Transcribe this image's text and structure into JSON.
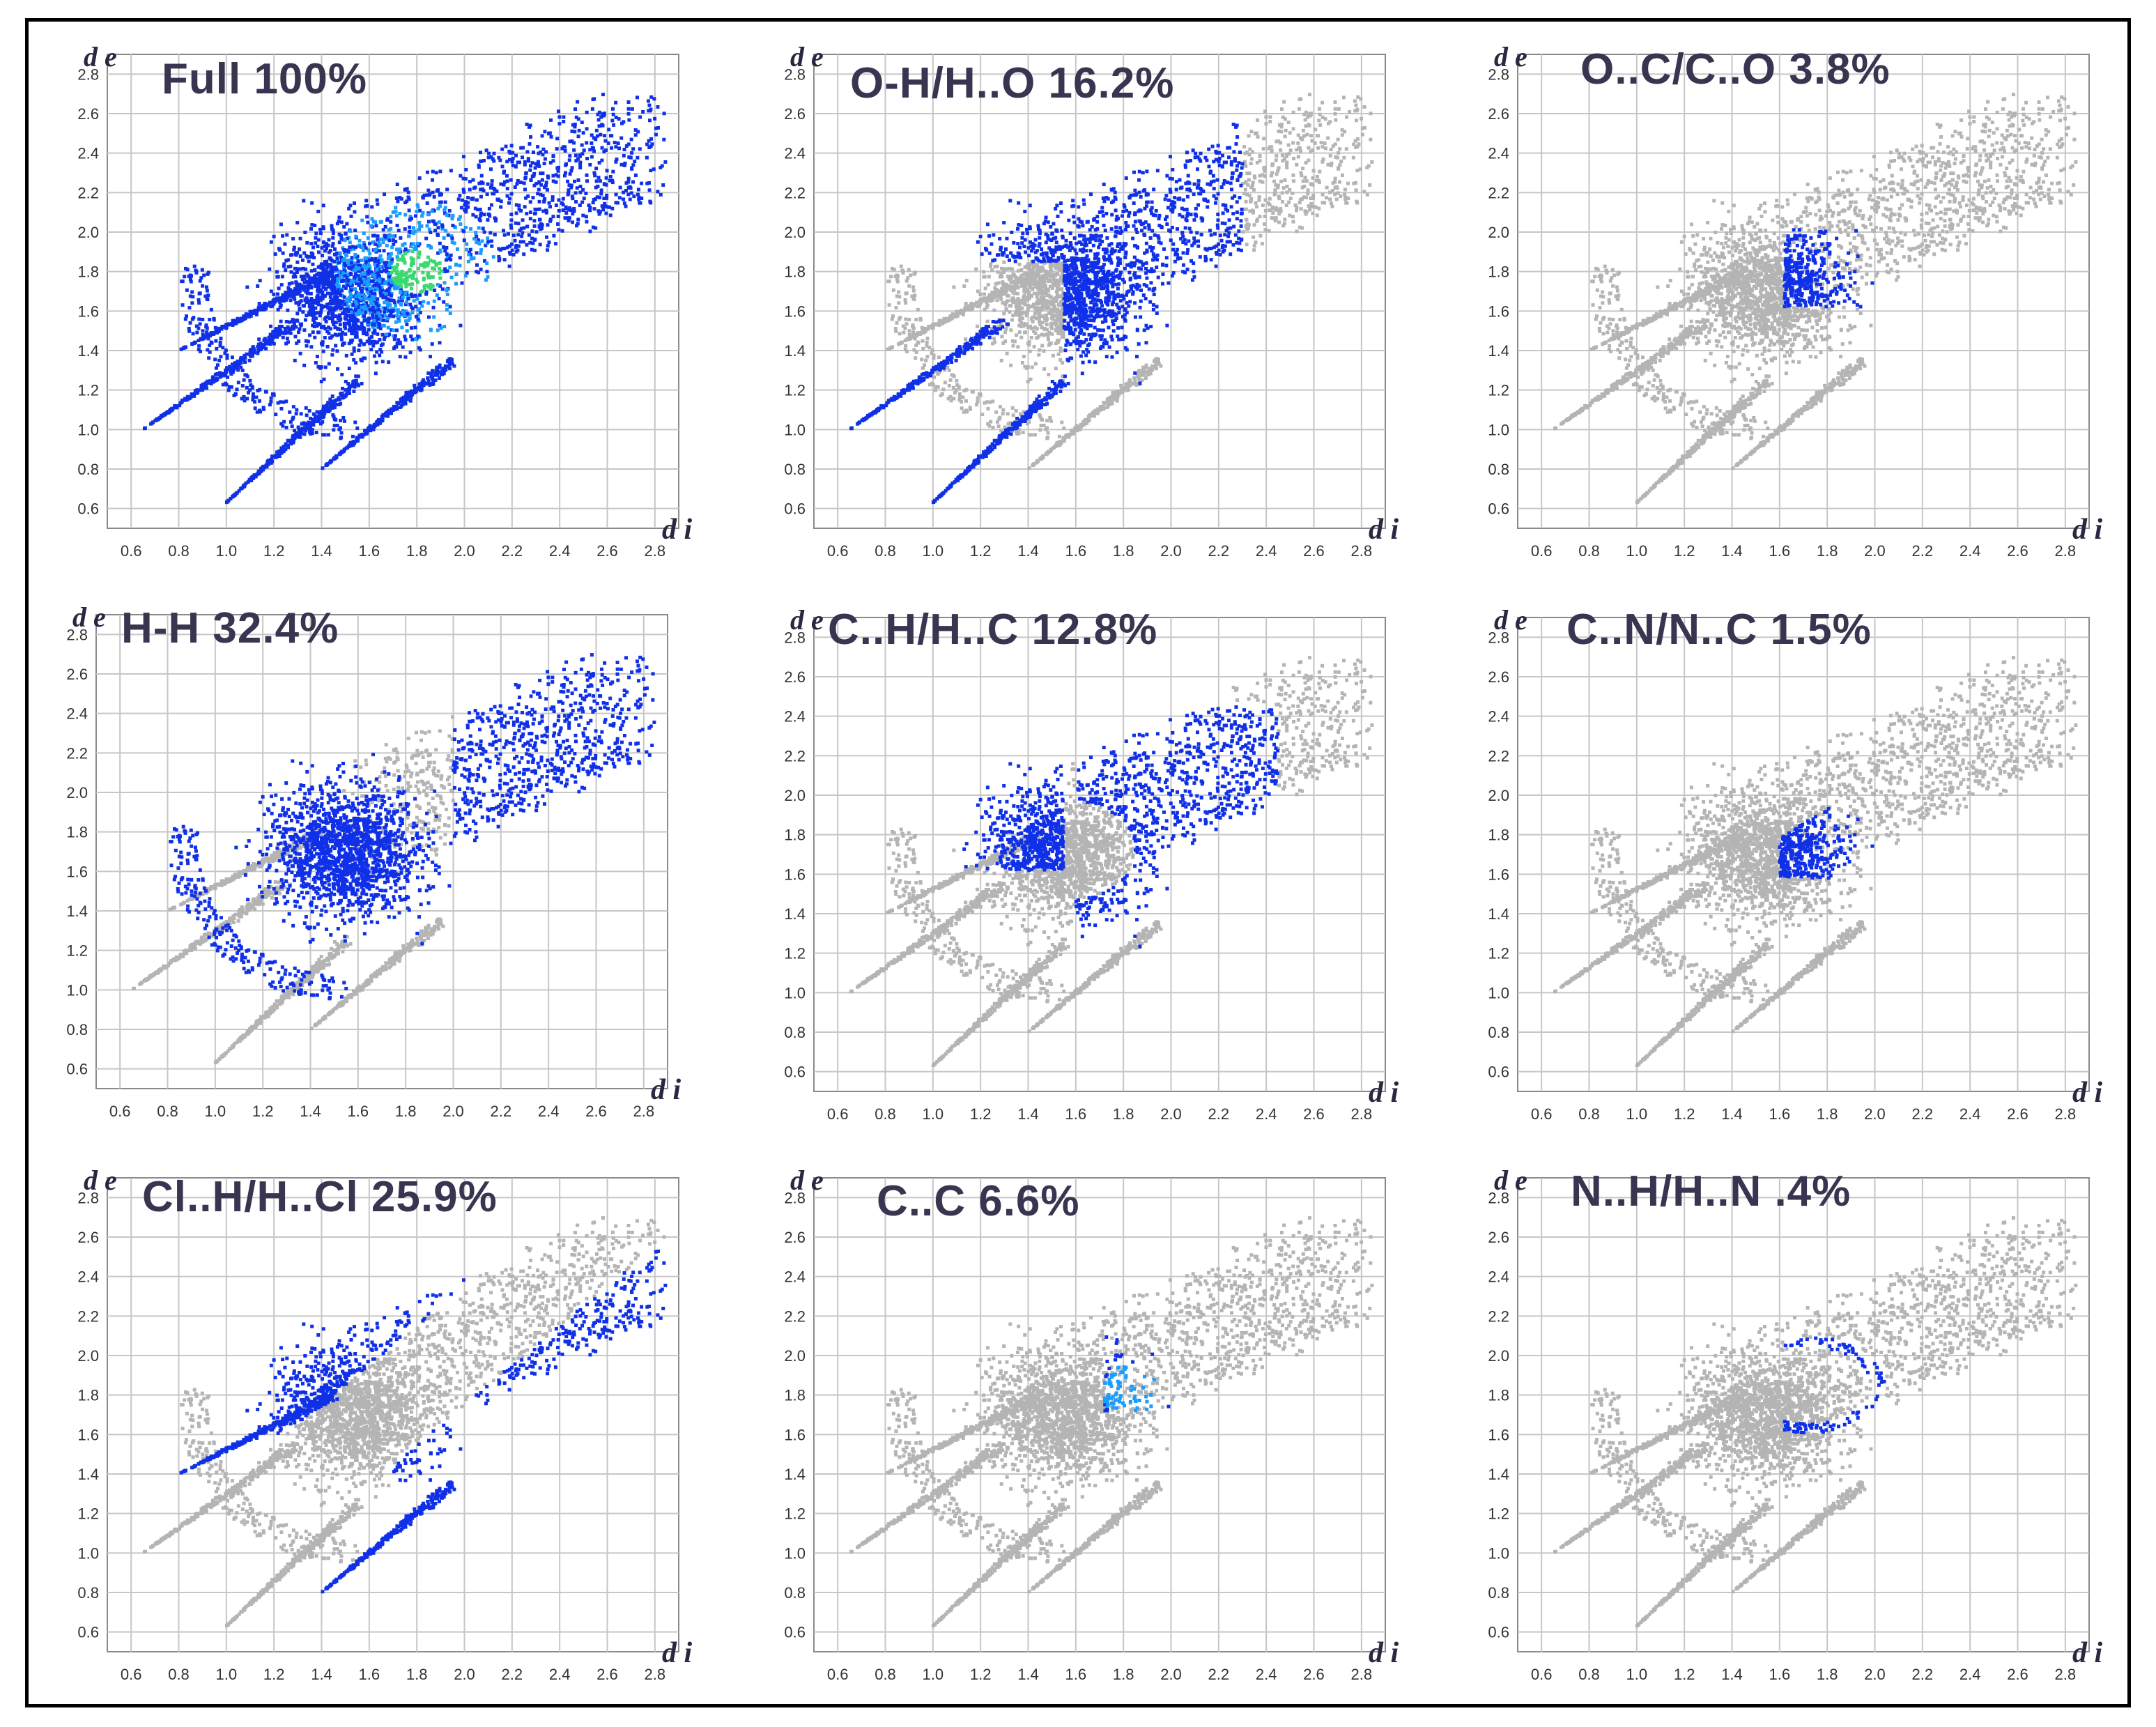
{
  "figure": {
    "colors": {
      "contact": "#1030e8",
      "hot": "#1a9dff",
      "peak": "#39d96e",
      "background": "#b4b4b4",
      "grid": "#c6c6c6",
      "text": "#3a3450"
    }
  },
  "chart_data": [
    {
      "type": "scatter",
      "title": "Full 100%",
      "contact": "Full",
      "percent": 100,
      "highlight": "full",
      "xlabel": "d i",
      "ylabel": "d e",
      "xlim": [
        0.5,
        2.9
      ],
      "ylim": [
        0.5,
        2.9
      ],
      "x_ticks": [
        "0.6",
        "0.8",
        "1.0",
        "1.2",
        "1.4",
        "1.6",
        "1.8",
        "2.0",
        "2.2",
        "2.4",
        "2.6",
        "2.8"
      ],
      "y_ticks": [
        "0.6",
        "0.8",
        "1.0",
        "1.2",
        "1.4",
        "1.6",
        "1.8",
        "2.0",
        "2.2",
        "2.4",
        "2.6",
        "2.8"
      ]
    },
    {
      "type": "scatter",
      "title": "O-H/H..O  16.2%",
      "contact": "O-H/H..O",
      "percent": 16.2,
      "highlight": "oh",
      "xlabel": "d i",
      "ylabel": "d e",
      "xlim": [
        0.5,
        2.9
      ],
      "ylim": [
        0.5,
        2.9
      ],
      "x_ticks": [
        "0.6",
        "0.8",
        "1.0",
        "1.2",
        "1.4",
        "1.6",
        "1.8",
        "2.0",
        "2.2",
        "2.4",
        "2.6",
        "2.8"
      ],
      "y_ticks": [
        "0.6",
        "0.8",
        "1.0",
        "1.2",
        "1.4",
        "1.6",
        "1.8",
        "2.0",
        "2.2",
        "2.4",
        "2.6",
        "2.8"
      ]
    },
    {
      "type": "scatter",
      "title": "O..C/C..O 3.8%",
      "contact": "O..C/C..O",
      "percent": 3.8,
      "highlight": "oc",
      "xlabel": "d i",
      "ylabel": "d e",
      "xlim": [
        0.5,
        2.9
      ],
      "ylim": [
        0.5,
        2.9
      ],
      "x_ticks": [
        "0.6",
        "0.8",
        "1.0",
        "1.2",
        "1.4",
        "1.6",
        "1.8",
        "2.0",
        "2.2",
        "2.4",
        "2.6",
        "2.8"
      ],
      "y_ticks": [
        "0.6",
        "0.8",
        "1.0",
        "1.2",
        "1.4",
        "1.6",
        "1.8",
        "2.0",
        "2.2",
        "2.4",
        "2.6",
        "2.8"
      ]
    },
    {
      "type": "scatter",
      "title": "H-H 32.4%",
      "contact": "H-H",
      "percent": 32.4,
      "highlight": "hh",
      "xlabel": "d i",
      "ylabel": "d e",
      "xlim": [
        0.5,
        2.9
      ],
      "ylim": [
        0.5,
        2.9
      ],
      "x_ticks": [
        "0.6",
        "0.8",
        "1.0",
        "1.2",
        "1.4",
        "1.6",
        "1.8",
        "2.0",
        "2.2",
        "2.4",
        "2.6",
        "2.8"
      ],
      "y_ticks": [
        "0.6",
        "0.8",
        "1.0",
        "1.2",
        "1.4",
        "1.6",
        "1.8",
        "2.0",
        "2.2",
        "2.4",
        "2.6",
        "2.8"
      ]
    },
    {
      "type": "scatter",
      "title": "C..H/H..C 12.8%",
      "contact": "C..H/H..C",
      "percent": 12.8,
      "highlight": "ch",
      "xlabel": "d i",
      "ylabel": "d e",
      "xlim": [
        0.5,
        2.9
      ],
      "ylim": [
        0.5,
        2.9
      ],
      "x_ticks": [
        "0.6",
        "0.8",
        "1.0",
        "1.2",
        "1.4",
        "1.6",
        "1.8",
        "2.0",
        "2.2",
        "2.4",
        "2.6",
        "2.8"
      ],
      "y_ticks": [
        "0.6",
        "0.8",
        "1.0",
        "1.2",
        "1.4",
        "1.6",
        "1.8",
        "2.0",
        "2.2",
        "2.4",
        "2.6",
        "2.8"
      ]
    },
    {
      "type": "scatter",
      "title": "C..N/N..C  1.5%",
      "contact": "C..N/N..C",
      "percent": 1.5,
      "highlight": "cn",
      "xlabel": "d i",
      "ylabel": "d e",
      "xlim": [
        0.5,
        2.9
      ],
      "ylim": [
        0.5,
        2.9
      ],
      "x_ticks": [
        "0.6",
        "0.8",
        "1.0",
        "1.2",
        "1.4",
        "1.6",
        "1.8",
        "2.0",
        "2.2",
        "2.4",
        "2.6",
        "2.8"
      ],
      "y_ticks": [
        "0.6",
        "0.8",
        "1.0",
        "1.2",
        "1.4",
        "1.6",
        "1.8",
        "2.0",
        "2.2",
        "2.4",
        "2.6",
        "2.8"
      ]
    },
    {
      "type": "scatter",
      "title": "Cl..H/H..Cl 25.9%",
      "contact": "Cl..H/H..Cl",
      "percent": 25.9,
      "highlight": "clh",
      "xlabel": "d i",
      "ylabel": "d e",
      "xlim": [
        0.5,
        2.9
      ],
      "ylim": [
        0.5,
        2.9
      ],
      "x_ticks": [
        "0.6",
        "0.8",
        "1.0",
        "1.2",
        "1.4",
        "1.6",
        "1.8",
        "2.0",
        "2.2",
        "2.4",
        "2.6",
        "2.8"
      ],
      "y_ticks": [
        "0.6",
        "0.8",
        "1.0",
        "1.2",
        "1.4",
        "1.6",
        "1.8",
        "2.0",
        "2.2",
        "2.4",
        "2.6",
        "2.8"
      ]
    },
    {
      "type": "scatter",
      "title": "C..C 6.6%",
      "contact": "C..C",
      "percent": 6.6,
      "highlight": "cc",
      "xlabel": "d i",
      "ylabel": "d e",
      "xlim": [
        0.5,
        2.9
      ],
      "ylim": [
        0.5,
        2.9
      ],
      "x_ticks": [
        "0.6",
        "0.8",
        "1.0",
        "1.2",
        "1.4",
        "1.6",
        "1.8",
        "2.0",
        "2.2",
        "2.4",
        "2.6",
        "2.8"
      ],
      "y_ticks": [
        "0.6",
        "0.8",
        "1.0",
        "1.2",
        "1.4",
        "1.6",
        "1.8",
        "2.0",
        "2.2",
        "2.4",
        "2.6",
        "2.8"
      ]
    },
    {
      "type": "scatter",
      "title": "N..H/H..N .4%",
      "contact": "N..H/H..N",
      "percent": 0.4,
      "highlight": "nh",
      "xlabel": "d i",
      "ylabel": "d e",
      "xlim": [
        0.5,
        2.9
      ],
      "ylim": [
        0.5,
        2.9
      ],
      "x_ticks": [
        "0.6",
        "0.8",
        "1.0",
        "1.2",
        "1.4",
        "1.6",
        "1.8",
        "2.0",
        "2.2",
        "2.4",
        "2.6",
        "2.8"
      ],
      "y_ticks": [
        "0.6",
        "0.8",
        "1.0",
        "1.2",
        "1.4",
        "1.6",
        "1.8",
        "2.0",
        "2.2",
        "2.4",
        "2.6",
        "2.8"
      ]
    }
  ]
}
